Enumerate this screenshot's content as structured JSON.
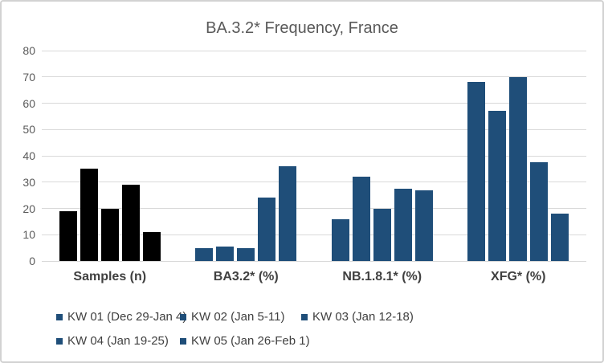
{
  "chart_data": {
    "type": "bar",
    "title": "BA.3.2* Frequency, France",
    "categories": [
      "Samples (n)",
      "BA3.2* (%)",
      "NB.1.8.1* (%)",
      "XFG* (%)"
    ],
    "series": [
      {
        "name": "KW 01 (Dec 29-Jan 4)",
        "values": [
          19,
          5,
          16,
          68
        ]
      },
      {
        "name": "KW 02 (Jan 5-11)",
        "values": [
          35,
          5.6,
          32,
          57
        ]
      },
      {
        "name": "KW 03 (Jan 12-18)",
        "values": [
          20,
          5,
          20,
          70
        ]
      },
      {
        "name": "KW 04 (Jan 19-25)",
        "values": [
          29,
          24,
          27.5,
          37.5
        ]
      },
      {
        "name": "KW 05 (Jan 26-Feb 1)",
        "values": [
          11,
          36,
          27,
          18
        ]
      }
    ],
    "ylim": [
      0,
      80
    ],
    "yticks": [
      0,
      10,
      20,
      30,
      40,
      50,
      60,
      70,
      80
    ],
    "grid": true,
    "legend_position": "bottom",
    "xlabel": "",
    "ylabel": "",
    "category_colors": [
      "#000000",
      "#1F4E79",
      "#1F4E79",
      "#1F4E79"
    ],
    "legend_marker_color": "#1F4E79",
    "colors": {
      "bar_blue": "#1F4E79",
      "bar_black": "#000000",
      "gridline": "#D9D9D9",
      "axis_text": "#595959",
      "title_text": "#595959",
      "category_text": "#404040",
      "frame_border": "#D2D2D2",
      "background": "#FFFFFF"
    }
  }
}
